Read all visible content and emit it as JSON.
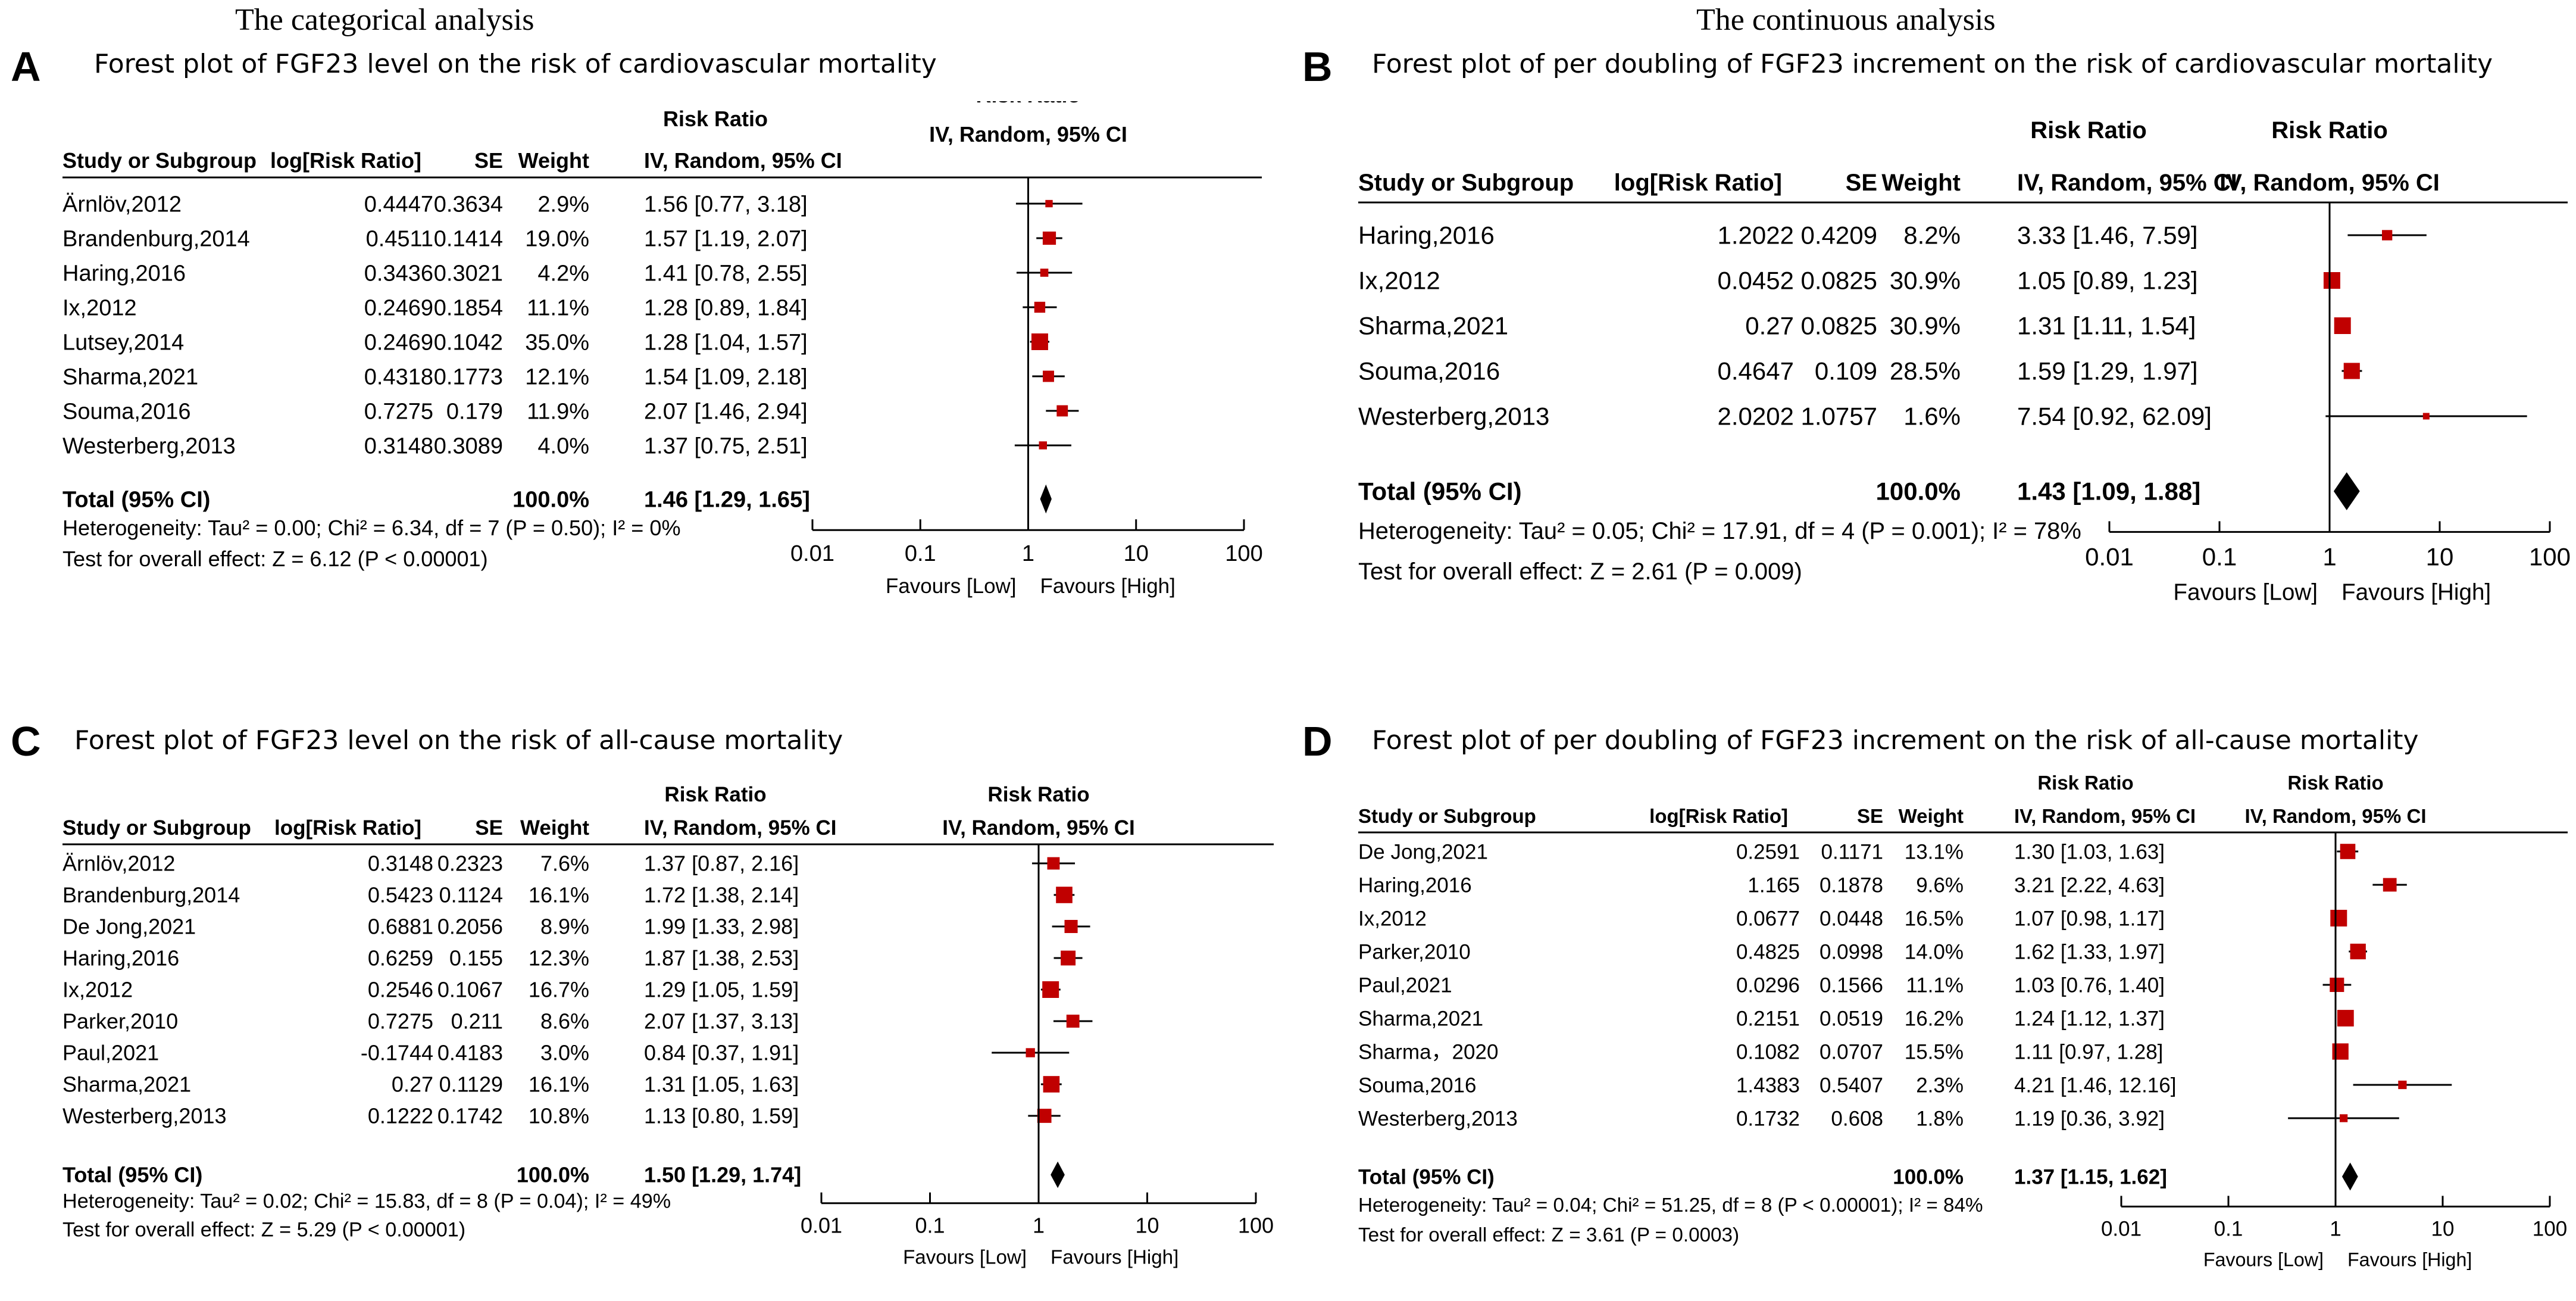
{
  "headers": {
    "categorical": "The categorical analysis",
    "continuous": "The continuous analysis"
  },
  "common": {
    "col_study": "Study or Subgroup",
    "col_log": "log[Risk Ratio]",
    "col_se": "SE",
    "col_weight": "Weight",
    "col_rr_top": "Risk Ratio",
    "col_rr_sub": "IV, Random, 95% CI",
    "plot_top": "Risk Ratio",
    "plot_sub": "IV, Random, 95% CI",
    "favours_low": "Favours [Low]",
    "favours_high": "Favours [High]",
    "total_label": "Total (95% CI)",
    "axis_ticks": [
      "0.01",
      "0.1",
      "1",
      "10",
      "100"
    ],
    "square_color": "#c00000"
  },
  "panels": [
    {
      "letter": "A",
      "title": "Forest plot of FGF23 level on the risk of cardiovascular mortality",
      "chart_data": {
        "type": "forest",
        "xscale": "log",
        "xlim": [
          0.01,
          100
        ],
        "studies": [
          {
            "name": "Ärnlöv,2012",
            "log": "0.4447",
            "se": "0.3634",
            "weight": "2.9%",
            "ci_text": "1.56 [0.77, 3.18]",
            "rr": 1.56,
            "lo": 0.77,
            "hi": 3.18,
            "w": 2.9
          },
          {
            "name": "Brandenburg,2014",
            "log": "0.4511",
            "se": "0.1414",
            "weight": "19.0%",
            "ci_text": "1.57 [1.19, 2.07]",
            "rr": 1.57,
            "lo": 1.19,
            "hi": 2.07,
            "w": 19.0
          },
          {
            "name": "Haring,2016",
            "log": "0.3436",
            "se": "0.3021",
            "weight": "4.2%",
            "ci_text": "1.41 [0.78, 2.55]",
            "rr": 1.41,
            "lo": 0.78,
            "hi": 2.55,
            "w": 4.2
          },
          {
            "name": "Ix,2012",
            "log": "0.2469",
            "se": "0.1854",
            "weight": "11.1%",
            "ci_text": "1.28 [0.89, 1.84]",
            "rr": 1.28,
            "lo": 0.89,
            "hi": 1.84,
            "w": 11.1
          },
          {
            "name": "Lutsey,2014",
            "log": "0.2469",
            "se": "0.1042",
            "weight": "35.0%",
            "ci_text": "1.28 [1.04, 1.57]",
            "rr": 1.28,
            "lo": 1.04,
            "hi": 1.57,
            "w": 35.0
          },
          {
            "name": "Sharma,2021",
            "log": "0.4318",
            "se": "0.1773",
            "weight": "12.1%",
            "ci_text": "1.54 [1.09, 2.18]",
            "rr": 1.54,
            "lo": 1.09,
            "hi": 2.18,
            "w": 12.1
          },
          {
            "name": "Souma,2016",
            "log": "0.7275",
            "se": "0.179",
            "weight": "11.9%",
            "ci_text": "2.07 [1.46, 2.94]",
            "rr": 2.07,
            "lo": 1.46,
            "hi": 2.94,
            "w": 11.9
          },
          {
            "name": "Westerberg,2013",
            "log": "0.3148",
            "se": "0.3089",
            "weight": "4.0%",
            "ci_text": "1.37 [0.75, 2.51]",
            "rr": 1.37,
            "lo": 0.75,
            "hi": 2.51,
            "w": 4.0
          }
        ],
        "total": {
          "weight": "100.0%",
          "ci_text": "1.46 [1.29, 1.65]",
          "rr": 1.46,
          "lo": 1.29,
          "hi": 1.65
        },
        "heterogeneity": "Heterogeneity: Tau² = 0.00; Chi² = 6.34, df = 7 (P = 0.50); I² = 0%",
        "overall": "Test for overall effect: Z = 6.12 (P < 0.00001)"
      }
    },
    {
      "letter": "B",
      "title": "Forest plot of per doubling of FGF23 increment on the risk of cardiovascular mortality",
      "chart_data": {
        "type": "forest",
        "xscale": "log",
        "xlim": [
          0.01,
          100
        ],
        "studies": [
          {
            "name": "Haring,2016",
            "log": "1.2022",
            "se": "0.4209",
            "weight": "8.2%",
            "ci_text": "3.33 [1.46, 7.59]",
            "rr": 3.33,
            "lo": 1.46,
            "hi": 7.59,
            "w": 8.2
          },
          {
            "name": "Ix,2012",
            "log": "0.0452",
            "se": "0.0825",
            "weight": "30.9%",
            "ci_text": "1.05 [0.89, 1.23]",
            "rr": 1.05,
            "lo": 0.89,
            "hi": 1.23,
            "w": 30.9
          },
          {
            "name": "Sharma,2021",
            "log": "0.27",
            "se": "0.0825",
            "weight": "30.9%",
            "ci_text": "1.31 [1.11, 1.54]",
            "rr": 1.31,
            "lo": 1.11,
            "hi": 1.54,
            "w": 30.9
          },
          {
            "name": "Souma,2016",
            "log": "0.4647",
            "se": "0.109",
            "weight": "28.5%",
            "ci_text": "1.59 [1.29, 1.97]",
            "rr": 1.59,
            "lo": 1.29,
            "hi": 1.97,
            "w": 28.5
          },
          {
            "name": "Westerberg,2013",
            "log": "2.0202",
            "se": "1.0757",
            "weight": "1.6%",
            "ci_text": "7.54 [0.92, 62.09]",
            "rr": 7.54,
            "lo": 0.92,
            "hi": 62.09,
            "w": 1.6
          }
        ],
        "total": {
          "weight": "100.0%",
          "ci_text": "1.43 [1.09, 1.88]",
          "rr": 1.43,
          "lo": 1.09,
          "hi": 1.88
        },
        "heterogeneity": "Heterogeneity: Tau² = 0.05; Chi² = 17.91, df = 4 (P = 0.001); I² = 78%",
        "overall": "Test for overall effect: Z = 2.61 (P = 0.009)"
      }
    },
    {
      "letter": "C",
      "title": "Forest plot of FGF23 level on the risk of all-cause mortality",
      "chart_data": {
        "type": "forest",
        "xscale": "log",
        "xlim": [
          0.01,
          100
        ],
        "studies": [
          {
            "name": "Ärnlöv,2012",
            "log": "0.3148",
            "se": "0.2323",
            "weight": "7.6%",
            "ci_text": "1.37 [0.87, 2.16]",
            "rr": 1.37,
            "lo": 0.87,
            "hi": 2.16,
            "w": 7.6
          },
          {
            "name": "Brandenburg,2014",
            "log": "0.5423",
            "se": "0.1124",
            "weight": "16.1%",
            "ci_text": "1.72 [1.38, 2.14]",
            "rr": 1.72,
            "lo": 1.38,
            "hi": 2.14,
            "w": 16.1
          },
          {
            "name": "De Jong,2021",
            "log": "0.6881",
            "se": "0.2056",
            "weight": "8.9%",
            "ci_text": "1.99 [1.33, 2.98]",
            "rr": 1.99,
            "lo": 1.33,
            "hi": 2.98,
            "w": 8.9
          },
          {
            "name": "Haring,2016",
            "log": "0.6259",
            "se": "0.155",
            "weight": "12.3%",
            "ci_text": "1.87 [1.38, 2.53]",
            "rr": 1.87,
            "lo": 1.38,
            "hi": 2.53,
            "w": 12.3
          },
          {
            "name": "Ix,2012",
            "log": "0.2546",
            "se": "0.1067",
            "weight": "16.7%",
            "ci_text": "1.29 [1.05, 1.59]",
            "rr": 1.29,
            "lo": 1.05,
            "hi": 1.59,
            "w": 16.7
          },
          {
            "name": "Parker,2010",
            "log": "0.7275",
            "se": "0.211",
            "weight": "8.6%",
            "ci_text": "2.07 [1.37, 3.13]",
            "rr": 2.07,
            "lo": 1.37,
            "hi": 3.13,
            "w": 8.6
          },
          {
            "name": "Paul,2021",
            "log": "-0.1744",
            "se": "0.4183",
            "weight": "3.0%",
            "ci_text": "0.84 [0.37, 1.91]",
            "rr": 0.84,
            "lo": 0.37,
            "hi": 1.91,
            "w": 3.0
          },
          {
            "name": "Sharma,2021",
            "log": "0.27",
            "se": "0.1129",
            "weight": "16.1%",
            "ci_text": "1.31 [1.05, 1.63]",
            "rr": 1.31,
            "lo": 1.05,
            "hi": 1.63,
            "w": 16.1
          },
          {
            "name": "Westerberg,2013",
            "log": "0.1222",
            "se": "0.1742",
            "weight": "10.8%",
            "ci_text": "1.13 [0.80, 1.59]",
            "rr": 1.13,
            "lo": 0.8,
            "hi": 1.59,
            "w": 10.8
          }
        ],
        "total": {
          "weight": "100.0%",
          "ci_text": "1.50 [1.29, 1.74]",
          "rr": 1.5,
          "lo": 1.29,
          "hi": 1.74
        },
        "heterogeneity": "Heterogeneity: Tau² = 0.02; Chi² = 15.83, df = 8 (P = 0.04); I² = 49%",
        "overall": "Test for overall effect: Z = 5.29 (P < 0.00001)"
      }
    },
    {
      "letter": "D",
      "title": "Forest plot of per doubling of FGF23 increment on the risk of all-cause mortality",
      "chart_data": {
        "type": "forest",
        "xscale": "log",
        "xlim": [
          0.01,
          100
        ],
        "studies": [
          {
            "name": "De Jong,2021",
            "log": "0.2591",
            "se": "0.1171",
            "weight": "13.1%",
            "ci_text": "1.30 [1.03, 1.63]",
            "rr": 1.3,
            "lo": 1.03,
            "hi": 1.63,
            "w": 13.1
          },
          {
            "name": "Haring,2016",
            "log": "1.165",
            "se": "0.1878",
            "weight": "9.6%",
            "ci_text": "3.21 [2.22, 4.63]",
            "rr": 3.21,
            "lo": 2.22,
            "hi": 4.63,
            "w": 9.6
          },
          {
            "name": "Ix,2012",
            "log": "0.0677",
            "se": "0.0448",
            "weight": "16.5%",
            "ci_text": "1.07 [0.98, 1.17]",
            "rr": 1.07,
            "lo": 0.98,
            "hi": 1.17,
            "w": 16.5
          },
          {
            "name": "Parker,2010",
            "log": "0.4825",
            "se": "0.0998",
            "weight": "14.0%",
            "ci_text": "1.62 [1.33, 1.97]",
            "rr": 1.62,
            "lo": 1.33,
            "hi": 1.97,
            "w": 14.0
          },
          {
            "name": "Paul,2021",
            "log": "0.0296",
            "se": "0.1566",
            "weight": "11.1%",
            "ci_text": "1.03 [0.76, 1.40]",
            "rr": 1.03,
            "lo": 0.76,
            "hi": 1.4,
            "w": 11.1
          },
          {
            "name": "Sharma,2021",
            "log": "0.2151",
            "se": "0.0519",
            "weight": "16.2%",
            "ci_text": "1.24 [1.12, 1.37]",
            "rr": 1.24,
            "lo": 1.12,
            "hi": 1.37,
            "w": 16.2
          },
          {
            "name": "Sharma，2020",
            "log": "0.1082",
            "se": "0.0707",
            "weight": "15.5%",
            "ci_text": "1.11 [0.97, 1.28]",
            "rr": 1.11,
            "lo": 0.97,
            "hi": 1.28,
            "w": 15.5
          },
          {
            "name": "Souma,2016",
            "log": "1.4383",
            "se": "0.5407",
            "weight": "2.3%",
            "ci_text": "4.21 [1.46, 12.16]",
            "rr": 4.21,
            "lo": 1.46,
            "hi": 12.16,
            "w": 2.3
          },
          {
            "name": "Westerberg,2013",
            "log": "0.1732",
            "se": "0.608",
            "weight": "1.8%",
            "ci_text": "1.19 [0.36, 3.92]",
            "rr": 1.19,
            "lo": 0.36,
            "hi": 3.92,
            "w": 1.8
          }
        ],
        "total": {
          "weight": "100.0%",
          "ci_text": "1.37 [1.15, 1.62]",
          "rr": 1.37,
          "lo": 1.15,
          "hi": 1.62
        },
        "heterogeneity": "Heterogeneity: Tau² = 0.04; Chi² = 51.25, df = 8 (P < 0.00001); I² = 84%",
        "overall": "Test for overall effect: Z = 3.61 (P = 0.0003)"
      }
    }
  ]
}
